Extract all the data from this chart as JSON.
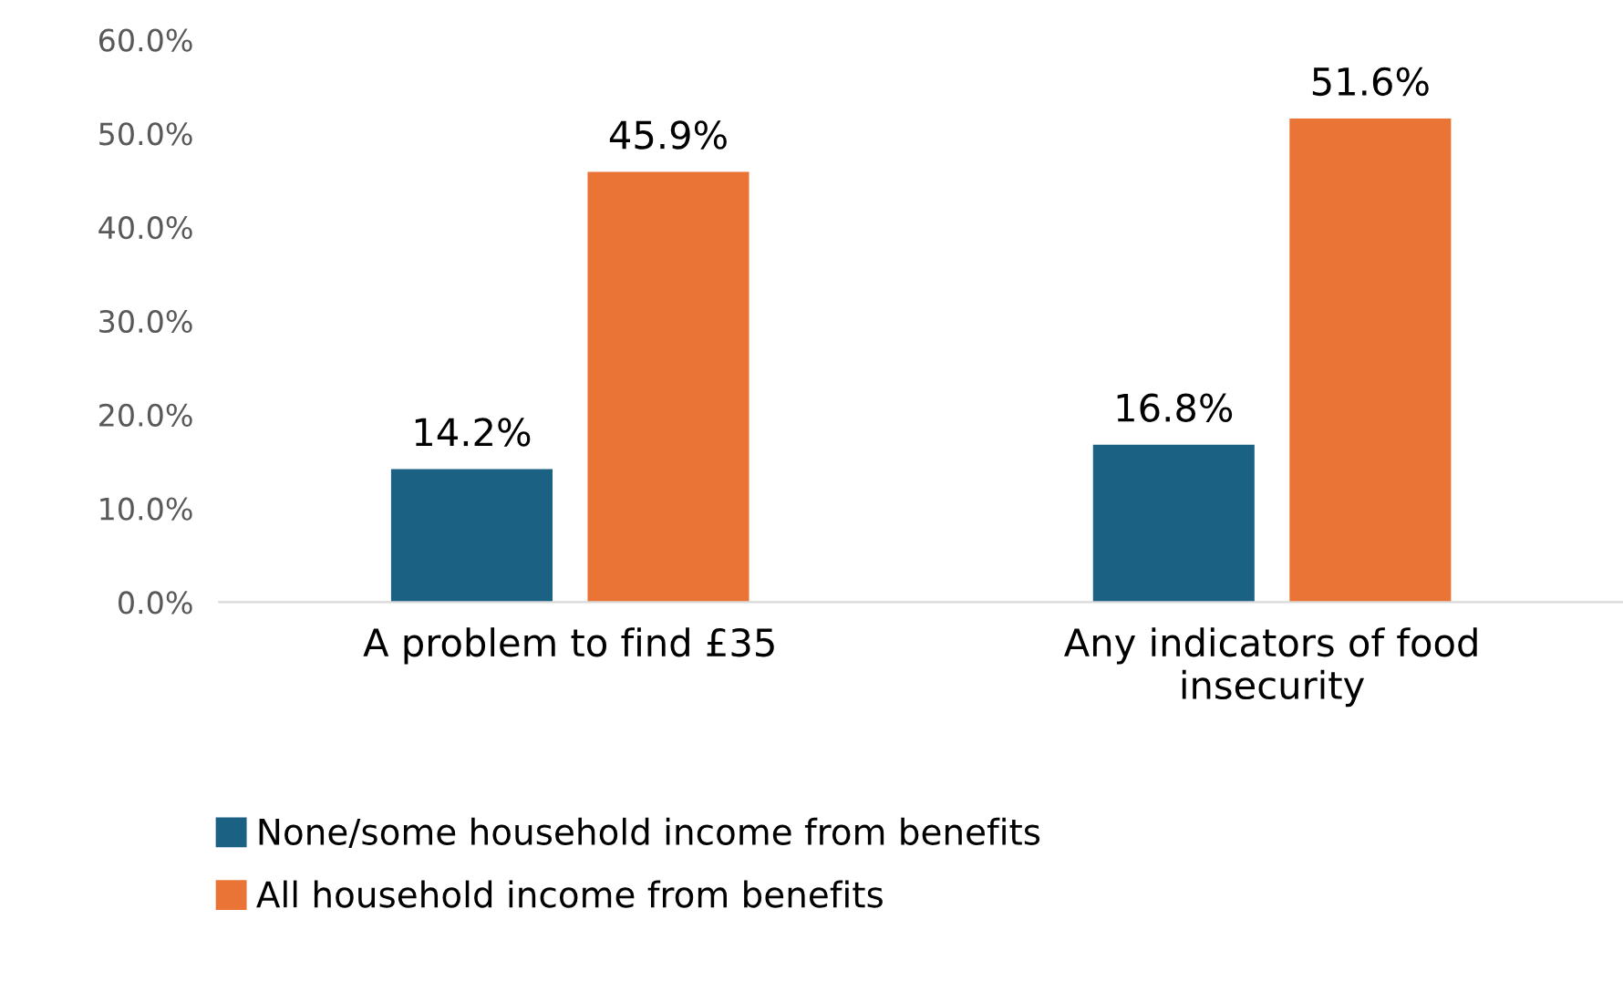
{
  "chart_data": {
    "type": "bar",
    "categories": [
      "A problem to find £35",
      "Any indicators of food\ninsecurity"
    ],
    "series": [
      {
        "name": "None/some household income from benefits",
        "color": "#1b6183",
        "values": [
          14.2,
          16.8
        ],
        "value_labels": [
          "14.2%",
          "16.8%"
        ]
      },
      {
        "name": "All household income from benefits",
        "color": "#e97435",
        "values": [
          45.9,
          51.6
        ],
        "value_labels": [
          "45.9%",
          "51.6%"
        ]
      }
    ],
    "ylim": [
      0,
      60
    ],
    "yticks": [
      {
        "value": 0,
        "label": "0.0%"
      },
      {
        "value": 10,
        "label": "10.0%"
      },
      {
        "value": 20,
        "label": "20.0%"
      },
      {
        "value": 30,
        "label": "30.0%"
      },
      {
        "value": 40,
        "label": "40.0%"
      },
      {
        "value": 50,
        "label": "50.0%"
      },
      {
        "value": 60,
        "label": "60.0%"
      }
    ],
    "grid": false,
    "legend": "bottom"
  }
}
